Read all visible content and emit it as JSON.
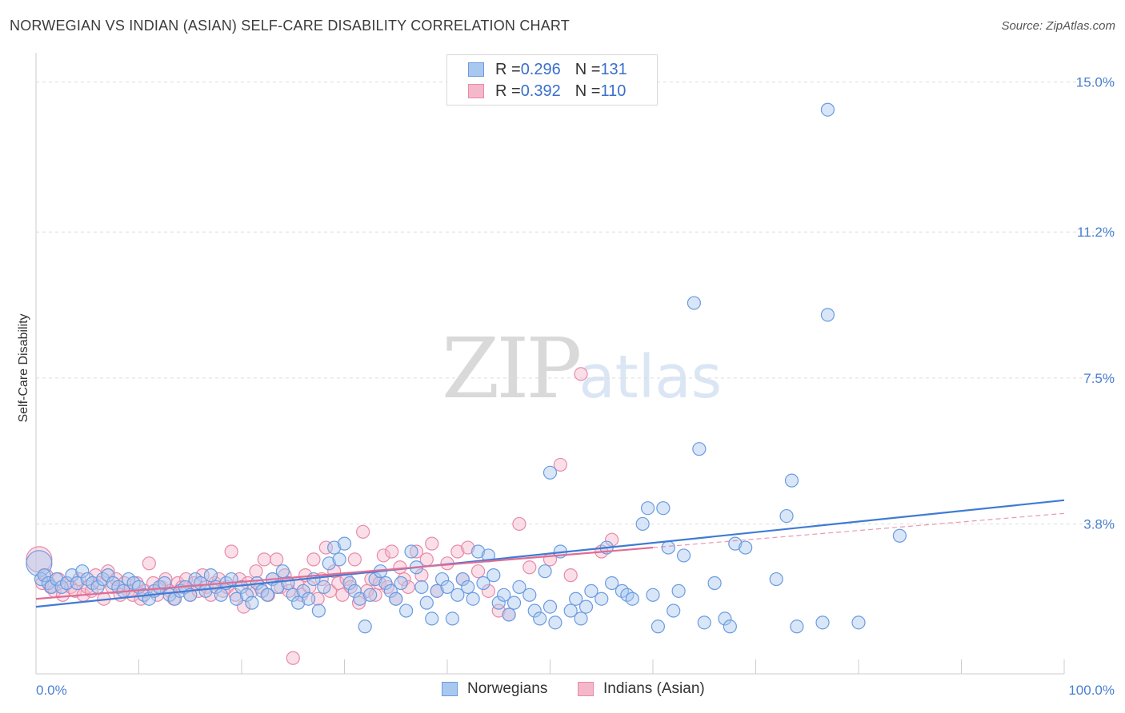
{
  "header": {
    "title": "NORWEGIAN VS INDIAN (ASIAN) SELF-CARE DISABILITY CORRELATION CHART",
    "source": "Source: ZipAtlas.com"
  },
  "watermark": {
    "zip": "ZIP",
    "atlas": "atlas"
  },
  "colors": {
    "blue_fill": "#a9c8f0",
    "blue_stroke": "#6a9be0",
    "blue_line": "#3f7bd4",
    "pink_fill": "#f5b8cb",
    "pink_stroke": "#e88aa8",
    "pink_line": "#e06c93",
    "grid": "#dddddd",
    "axis": "#cccccc"
  },
  "legend": {
    "rows": [
      {
        "r_label": "R = ",
        "r_value": "0.296",
        "n_label": "N = ",
        "n_value": "131"
      },
      {
        "r_label": "R = ",
        "r_value": "0.392",
        "n_label": "N = ",
        "n_value": "110"
      }
    ]
  },
  "chart_data": {
    "type": "scatter",
    "title": "NORWEGIAN VS INDIAN (ASIAN) SELF-CARE DISABILITY CORRELATION CHART",
    "xlabel": "",
    "ylabel": "Self-Care Disability",
    "xlim": [
      0,
      100
    ],
    "ylim": [
      0,
      15.5
    ],
    "x_tick_labels": [
      "0.0%",
      "100.0%"
    ],
    "y_ticks": [
      3.8,
      7.5,
      11.2,
      15.0
    ],
    "y_tick_labels": [
      "3.8%",
      "7.5%",
      "11.2%",
      "15.0%"
    ],
    "grid": true,
    "legend_position": "top-center",
    "series": [
      {
        "name": "Norwegians",
        "color": "#a9c8f0",
        "trend": {
          "x": [
            0,
            100
          ],
          "y": [
            1.7,
            4.4
          ]
        },
        "points": [
          [
            0.3,
            2.8
          ],
          [
            0.5,
            2.4
          ],
          [
            0.8,
            2.5
          ],
          [
            1.2,
            2.3
          ],
          [
            1.5,
            2.2
          ],
          [
            2,
            2.4
          ],
          [
            2.5,
            2.2
          ],
          [
            3,
            2.3
          ],
          [
            3.5,
            2.5
          ],
          [
            4,
            2.3
          ],
          [
            4.5,
            2.6
          ],
          [
            5,
            2.4
          ],
          [
            5.5,
            2.3
          ],
          [
            6,
            2.2
          ],
          [
            6.5,
            2.4
          ],
          [
            7,
            2.5
          ],
          [
            7.5,
            2.3
          ],
          [
            8,
            2.2
          ],
          [
            8.5,
            2.1
          ],
          [
            9,
            2.4
          ],
          [
            9.5,
            2.3
          ],
          [
            10,
            2.2
          ],
          [
            10.5,
            2.0
          ],
          [
            11,
            1.9
          ],
          [
            11.5,
            2.1
          ],
          [
            12,
            2.2
          ],
          [
            12.5,
            2.3
          ],
          [
            13,
            2.0
          ],
          [
            13.5,
            1.9
          ],
          [
            14,
            2.1
          ],
          [
            14.5,
            2.2
          ],
          [
            15,
            2.0
          ],
          [
            15.5,
            2.4
          ],
          [
            16,
            2.3
          ],
          [
            16.5,
            2.1
          ],
          [
            17,
            2.5
          ],
          [
            17.5,
            2.2
          ],
          [
            18,
            2.0
          ],
          [
            18.5,
            2.3
          ],
          [
            19,
            2.4
          ],
          [
            19.5,
            1.9
          ],
          [
            20,
            2.2
          ],
          [
            20.5,
            2.0
          ],
          [
            21,
            1.8
          ],
          [
            21.5,
            2.3
          ],
          [
            22,
            2.1
          ],
          [
            22.5,
            2.0
          ],
          [
            23,
            2.4
          ],
          [
            23.5,
            2.2
          ],
          [
            24,
            2.6
          ],
          [
            24.5,
            2.3
          ],
          [
            25,
            2.0
          ],
          [
            25.5,
            1.8
          ],
          [
            26,
            2.1
          ],
          [
            26.5,
            1.9
          ],
          [
            27,
            2.4
          ],
          [
            27.5,
            1.6
          ],
          [
            28,
            2.2
          ],
          [
            28.5,
            2.8
          ],
          [
            29,
            3.2
          ],
          [
            29.5,
            2.9
          ],
          [
            30,
            3.3
          ],
          [
            30.5,
            2.3
          ],
          [
            31,
            2.1
          ],
          [
            31.5,
            1.9
          ],
          [
            32,
            1.2
          ],
          [
            32.5,
            2.0
          ],
          [
            33,
            2.4
          ],
          [
            33.5,
            2.6
          ],
          [
            34,
            2.3
          ],
          [
            34.5,
            2.1
          ],
          [
            35,
            1.9
          ],
          [
            35.5,
            2.3
          ],
          [
            36,
            1.6
          ],
          [
            36.5,
            3.1
          ],
          [
            37,
            2.7
          ],
          [
            37.5,
            2.2
          ],
          [
            38,
            1.8
          ],
          [
            38.5,
            1.4
          ],
          [
            39,
            2.1
          ],
          [
            39.5,
            2.4
          ],
          [
            40,
            2.2
          ],
          [
            40.5,
            1.4
          ],
          [
            41,
            2.0
          ],
          [
            41.5,
            2.4
          ],
          [
            42,
            2.2
          ],
          [
            42.5,
            1.9
          ],
          [
            43,
            3.1
          ],
          [
            43.5,
            2.3
          ],
          [
            44,
            3.0
          ],
          [
            44.5,
            2.5
          ],
          [
            45,
            1.8
          ],
          [
            45.5,
            2.0
          ],
          [
            46,
            1.5
          ],
          [
            46.5,
            1.8
          ],
          [
            47,
            2.2
          ],
          [
            48,
            2.0
          ],
          [
            48.5,
            1.6
          ],
          [
            49,
            1.4
          ],
          [
            49.5,
            2.6
          ],
          [
            50,
            1.7
          ],
          [
            50.5,
            1.3
          ],
          [
            51,
            3.1
          ],
          [
            52,
            1.6
          ],
          [
            52.5,
            1.9
          ],
          [
            53,
            1.4
          ],
          [
            53.5,
            1.7
          ],
          [
            54,
            2.1
          ],
          [
            55,
            1.9
          ],
          [
            55.5,
            3.2
          ],
          [
            56,
            2.3
          ],
          [
            57,
            2.1
          ],
          [
            57.5,
            2.0
          ],
          [
            58,
            1.9
          ],
          [
            59,
            3.8
          ],
          [
            59.5,
            4.2
          ],
          [
            60,
            2.0
          ],
          [
            60.5,
            1.2
          ],
          [
            61,
            4.2
          ],
          [
            61.5,
            3.2
          ],
          [
            62,
            1.6
          ],
          [
            62.5,
            2.1
          ],
          [
            63,
            3.0
          ],
          [
            65,
            1.3
          ],
          [
            66,
            2.3
          ],
          [
            67,
            1.4
          ],
          [
            67.5,
            1.2
          ],
          [
            68,
            3.3
          ],
          [
            69,
            3.2
          ],
          [
            72,
            2.4
          ],
          [
            73,
            4.0
          ],
          [
            74,
            1.2
          ],
          [
            76.5,
            1.3
          ],
          [
            77,
            14.3
          ],
          [
            77,
            9.1
          ],
          [
            80,
            1.3
          ],
          [
            84,
            3.5
          ],
          [
            64.5,
            5.7
          ],
          [
            73.5,
            4.9
          ],
          [
            64,
            9.4
          ],
          [
            50,
            5.1
          ]
        ]
      },
      {
        "name": "Indians (Asian)",
        "color": "#f5b8cb",
        "trend": {
          "x": [
            0,
            60
          ],
          "y": [
            1.9,
            3.2
          ]
        },
        "points": [
          [
            0.3,
            2.9
          ],
          [
            0.6,
            2.3
          ],
          [
            1,
            2.5
          ],
          [
            1.4,
            2.2
          ],
          [
            1.8,
            2.1
          ],
          [
            2.2,
            2.4
          ],
          [
            2.6,
            2.0
          ],
          [
            3,
            2.3
          ],
          [
            3.4,
            2.2
          ],
          [
            3.8,
            2.1
          ],
          [
            4.2,
            2.4
          ],
          [
            4.6,
            2.0
          ],
          [
            5,
            2.2
          ],
          [
            5.4,
            2.1
          ],
          [
            5.8,
            2.5
          ],
          [
            6.2,
            2.3
          ],
          [
            6.6,
            1.9
          ],
          [
            7,
            2.6
          ],
          [
            7.4,
            2.2
          ],
          [
            7.8,
            2.4
          ],
          [
            8.2,
            2.0
          ],
          [
            8.6,
            2.3
          ],
          [
            9,
            2.1
          ],
          [
            9.4,
            2.0
          ],
          [
            9.8,
            2.3
          ],
          [
            10.2,
            1.9
          ],
          [
            10.6,
            2.1
          ],
          [
            11,
            2.8
          ],
          [
            11.4,
            2.3
          ],
          [
            11.8,
            2.0
          ],
          [
            12.2,
            2.2
          ],
          [
            12.6,
            2.4
          ],
          [
            13,
            2.1
          ],
          [
            13.4,
            1.9
          ],
          [
            13.8,
            2.3
          ],
          [
            14.2,
            2.2
          ],
          [
            14.6,
            2.4
          ],
          [
            15,
            2.0
          ],
          [
            15.4,
            2.3
          ],
          [
            15.8,
            2.1
          ],
          [
            16.2,
            2.5
          ],
          [
            16.6,
            2.2
          ],
          [
            17,
            2.0
          ],
          [
            17.4,
            2.3
          ],
          [
            17.8,
            2.4
          ],
          [
            18.2,
            2.1
          ],
          [
            18.6,
            2.2
          ],
          [
            19,
            3.1
          ],
          [
            19.4,
            2.0
          ],
          [
            19.8,
            2.4
          ],
          [
            20.2,
            1.7
          ],
          [
            20.6,
            2.3
          ],
          [
            21,
            2.1
          ],
          [
            21.4,
            2.6
          ],
          [
            21.8,
            2.2
          ],
          [
            22.2,
            2.9
          ],
          [
            22.6,
            2.0
          ],
          [
            23,
            2.4
          ],
          [
            23.4,
            2.9
          ],
          [
            23.8,
            2.2
          ],
          [
            24.2,
            2.5
          ],
          [
            24.6,
            2.1
          ],
          [
            25,
            0.4
          ],
          [
            25.4,
            2.3
          ],
          [
            25.8,
            2.0
          ],
          [
            26.2,
            2.5
          ],
          [
            26.6,
            2.2
          ],
          [
            27,
            2.9
          ],
          [
            27.4,
            1.9
          ],
          [
            27.8,
            2.4
          ],
          [
            28.2,
            3.2
          ],
          [
            28.6,
            2.1
          ],
          [
            29,
            2.6
          ],
          [
            29.4,
            2.3
          ],
          [
            29.8,
            2.0
          ],
          [
            30.2,
            2.4
          ],
          [
            30.6,
            2.2
          ],
          [
            31,
            2.9
          ],
          [
            31.4,
            1.8
          ],
          [
            31.8,
            3.6
          ],
          [
            32.2,
            2.1
          ],
          [
            32.6,
            2.4
          ],
          [
            33,
            2.0
          ],
          [
            33.4,
            2.3
          ],
          [
            33.8,
            3.0
          ],
          [
            34.2,
            2.2
          ],
          [
            34.6,
            3.1
          ],
          [
            35,
            1.9
          ],
          [
            35.4,
            2.7
          ],
          [
            35.8,
            2.4
          ],
          [
            36.2,
            2.2
          ],
          [
            37,
            3.1
          ],
          [
            37.5,
            2.5
          ],
          [
            38,
            2.9
          ],
          [
            38.5,
            3.3
          ],
          [
            39,
            2.1
          ],
          [
            40,
            2.8
          ],
          [
            41,
            3.1
          ],
          [
            41.5,
            2.4
          ],
          [
            42,
            3.2
          ],
          [
            43,
            2.6
          ],
          [
            44,
            2.1
          ],
          [
            45,
            1.6
          ],
          [
            46,
            1.5
          ],
          [
            47,
            3.8
          ],
          [
            48,
            2.7
          ],
          [
            50,
            2.9
          ],
          [
            51,
            5.3
          ],
          [
            52,
            2.5
          ],
          [
            55,
            3.1
          ],
          [
            56,
            3.4
          ],
          [
            53,
            7.6
          ]
        ]
      }
    ]
  },
  "bottom_legend": {
    "items": [
      {
        "label": "Norwegians"
      },
      {
        "label": "Indians (Asian)"
      }
    ]
  }
}
